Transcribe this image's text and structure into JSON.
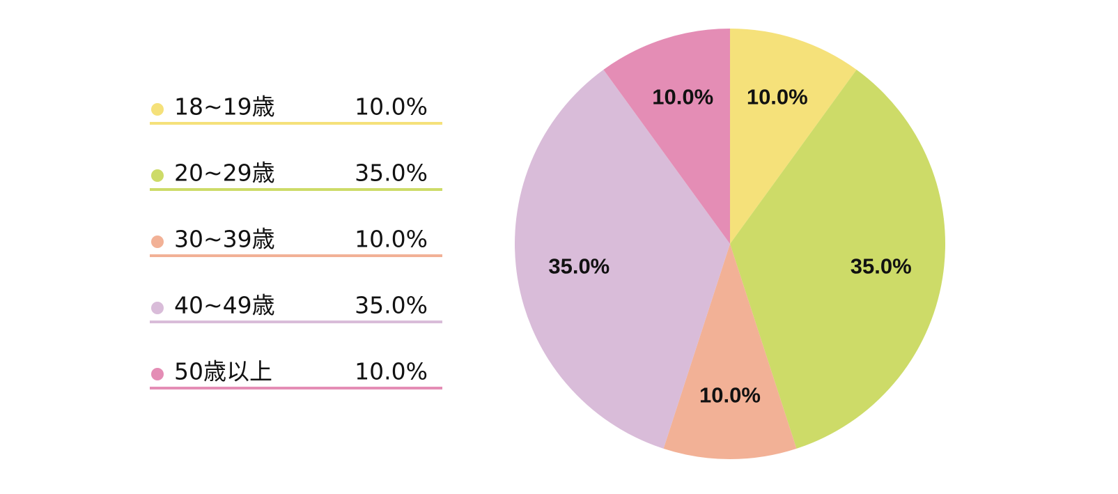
{
  "chart_data": {
    "type": "pie",
    "categories": [
      "18~19歳",
      "20~29歳",
      "30~39歳",
      "40~49歳",
      "50歳以上"
    ],
    "values": [
      10,
      35,
      10,
      35,
      10
    ],
    "value_labels": [
      "10.0%",
      "35.0%",
      "10.0%",
      "35.0%",
      "10.0%"
    ],
    "colors": [
      "#f5e17a",
      "#cddb68",
      "#f2b196",
      "#d9bcd9",
      "#e48db5"
    ]
  }
}
